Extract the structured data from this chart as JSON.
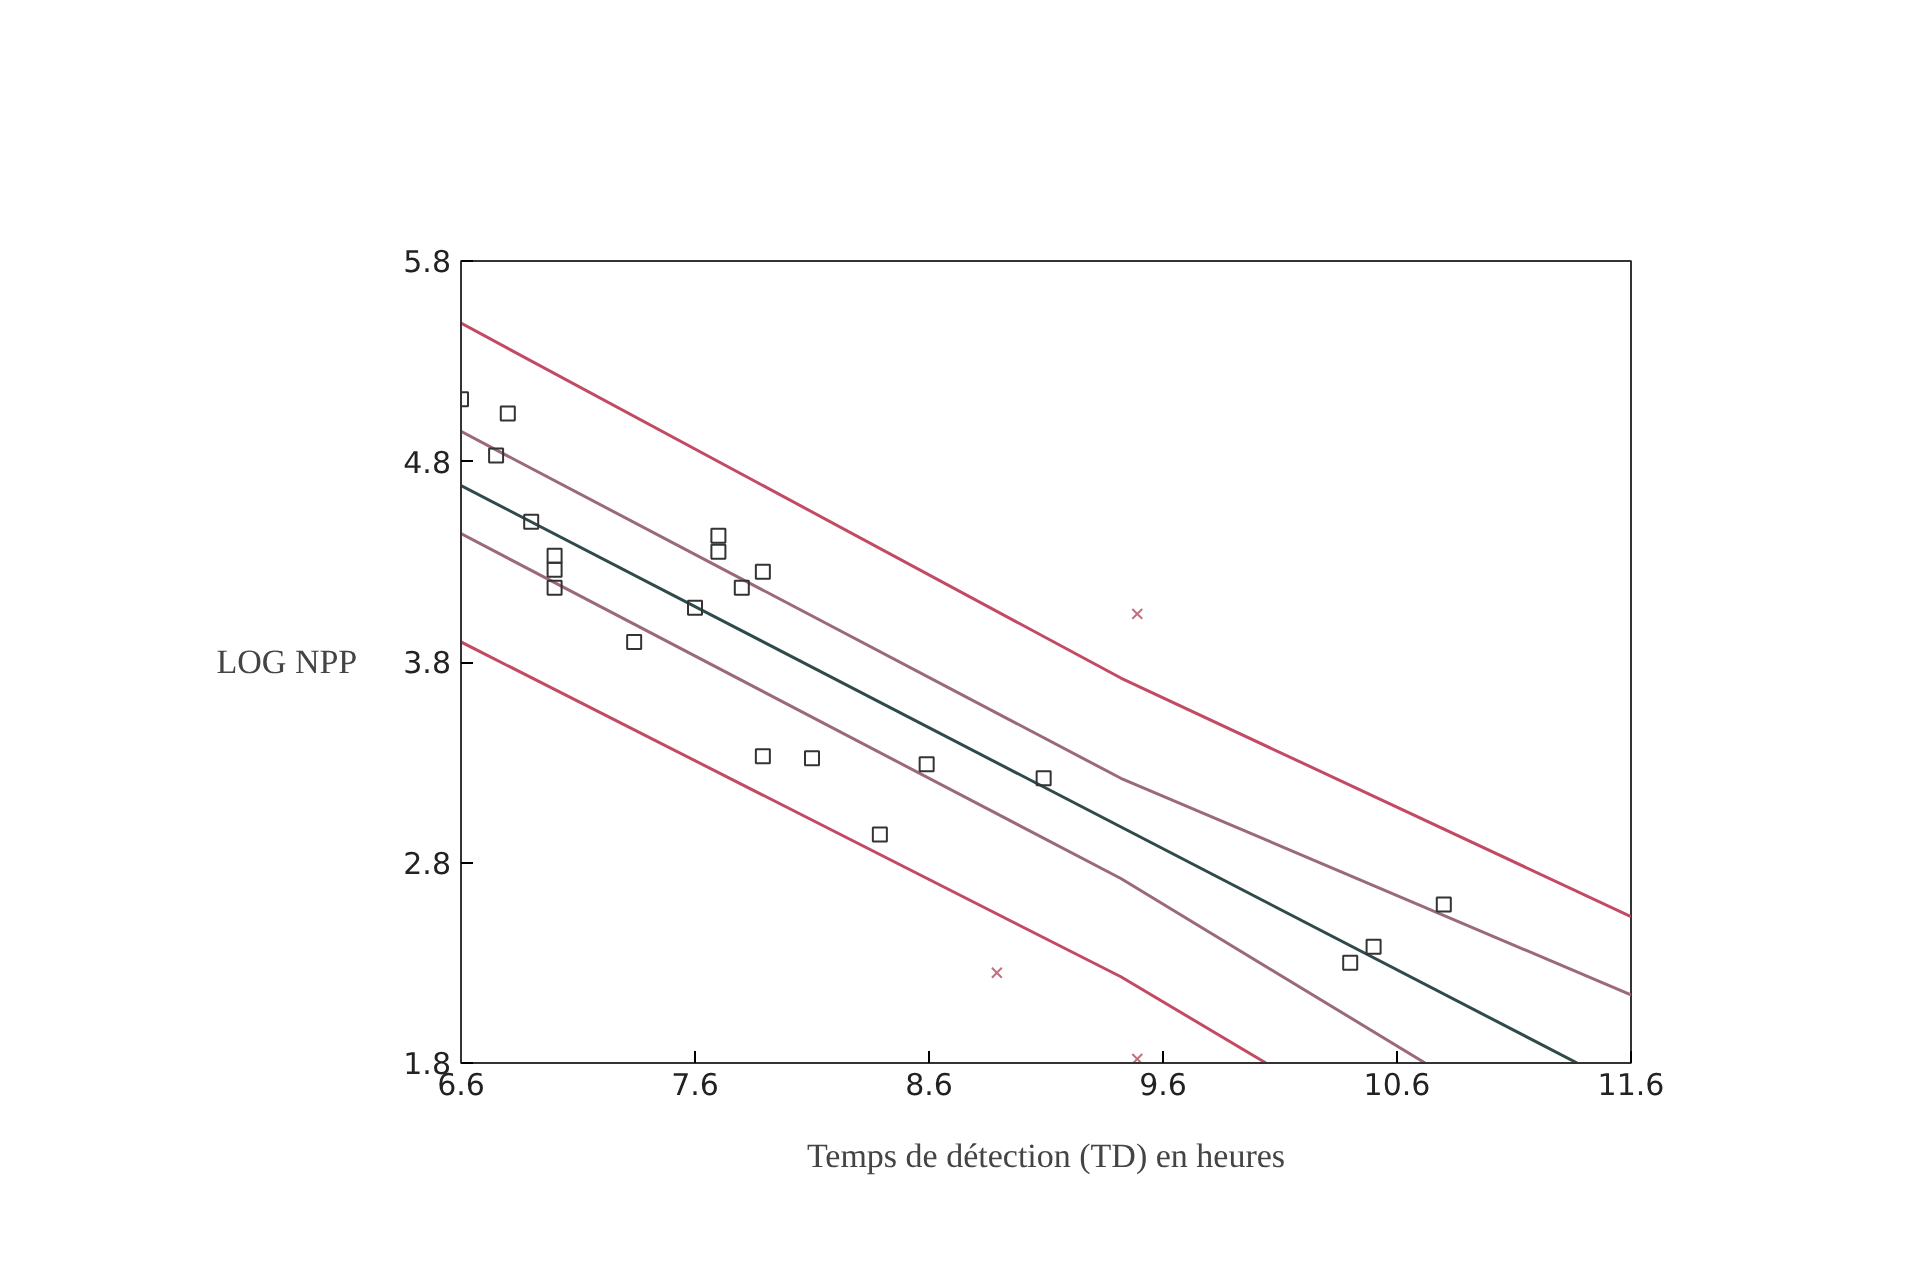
{
  "chart_data": {
    "type": "scatter",
    "xlabel": "Temps de détection (TD) en heures",
    "ylabel": "LOG NPP",
    "xlim": [
      6.6,
      11.6
    ],
    "ylim": [
      1.8,
      5.8
    ],
    "xticks": [
      6.6,
      7.6,
      8.6,
      9.6,
      10.6,
      11.6
    ],
    "yticks": [
      1.8,
      2.8,
      3.8,
      4.8,
      5.8
    ],
    "grid": false,
    "series": [
      {
        "type": "line",
        "color": "#c24a64",
        "x": [
          6.6,
          9.42,
          11.6
        ],
        "values": [
          5.49,
          3.72,
          2.53
        ]
      },
      {
        "type": "line",
        "color": "#9a6a78",
        "x": [
          6.6,
          9.42,
          11.6
        ],
        "values": [
          4.95,
          3.22,
          2.14
        ]
      },
      {
        "type": "line",
        "color": "#2f4a4a",
        "x": [
          6.6,
          11.37
        ],
        "values": [
          4.68,
          1.8
        ]
      },
      {
        "type": "line",
        "color": "#9a6a78",
        "x": [
          6.6,
          9.42,
          10.72
        ],
        "values": [
          4.44,
          2.72,
          1.8
        ]
      },
      {
        "type": "line",
        "color": "#c24a64",
        "x": [
          6.6,
          9.42,
          10.04
        ],
        "values": [
          3.9,
          2.23,
          1.8
        ]
      },
      {
        "marker": "square",
        "color": "#333333",
        "x": [
          6.6,
          6.8,
          6.75,
          6.9,
          7.0,
          7.0,
          7.0,
          7.34,
          7.6,
          7.7,
          7.7,
          7.8,
          7.89,
          7.89,
          8.1,
          8.59,
          8.39,
          9.09,
          10.4,
          10.5,
          10.8
        ],
        "values": [
          5.11,
          5.04,
          4.83,
          4.5,
          4.33,
          4.26,
          4.17,
          3.9,
          4.07,
          4.43,
          4.35,
          4.17,
          4.25,
          3.33,
          3.32,
          3.29,
          2.94,
          3.22,
          2.3,
          2.38,
          2.59
        ]
      },
      {
        "marker": "cross",
        "color": "#c07080",
        "x": [
          9.49,
          8.89,
          9.49
        ],
        "values": [
          4.04,
          2.25,
          1.82
        ]
      }
    ]
  }
}
